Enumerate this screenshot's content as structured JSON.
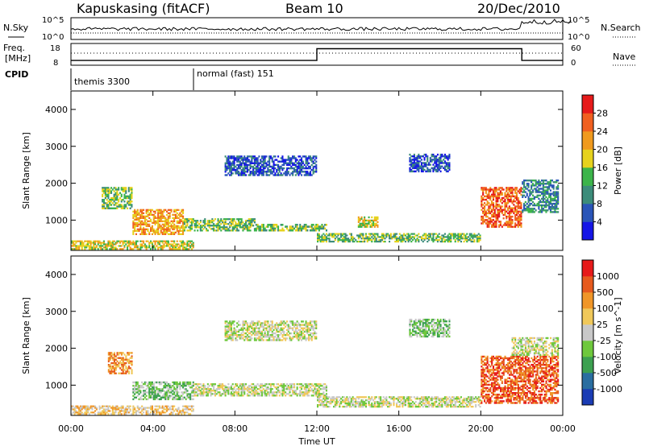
{
  "header": {
    "station": "Kapuskasing (fitACF)",
    "beam": "Beam 10",
    "date": "20/Dec/2010"
  },
  "aux": {
    "nsky_label": "N.Sky",
    "nsky_ticks": [
      "10^5",
      "10^0"
    ],
    "nsearch_label": "N.Search",
    "nsearch_ticks": [
      "10^5",
      "10^0"
    ],
    "freq_label_1": "Freq.",
    "freq_label_2": "[MHz]",
    "freq_ticks": [
      "18",
      "8"
    ],
    "nave_label": "Nave",
    "nave_ticks": [
      "60",
      "0"
    ],
    "cpid_label": "CPID",
    "cpid_segments": [
      {
        "t": 0,
        "label": "themis 3300"
      },
      {
        "t": 6,
        "label": "normal (fast) 151"
      }
    ],
    "freq_steps_mhz": [
      {
        "from": 0,
        "to": 12,
        "value": 10.2
      },
      {
        "from": 12,
        "to": 22,
        "value": 15.6
      },
      {
        "from": 22,
        "to": 24,
        "value": 10.2
      }
    ]
  },
  "chart_data": [
    {
      "type": "heatmap",
      "name": "power",
      "ylabel": "Slant Range [km]",
      "xlabel": "",
      "xlim": [
        0,
        24
      ],
      "ylim": [
        180,
        4500
      ],
      "yticks": [
        "1000",
        "2000",
        "3000",
        "4000"
      ],
      "ytick_values": [
        1000,
        2000,
        3000,
        4000
      ],
      "colorbar": {
        "label": "Power [dB]",
        "ticks": [
          "4",
          "8",
          "12",
          "16",
          "20",
          "24",
          "28"
        ],
        "colors": [
          "#1515e6",
          "#2a55b8",
          "#3c8c7a",
          "#3cb44a",
          "#e6d21e",
          "#f09a1e",
          "#f06020",
          "#e61a1a"
        ]
      },
      "patches": [
        {
          "t0": 1.5,
          "t1": 3.0,
          "r0": 1300,
          "r1": 1900,
          "level": 3
        },
        {
          "t0": 3.0,
          "t1": 5.5,
          "r0": 600,
          "r1": 1300,
          "level": 5
        },
        {
          "t0": 5.5,
          "t1": 9.0,
          "r0": 700,
          "r1": 1050,
          "level": 3
        },
        {
          "t0": 9.0,
          "t1": 12.5,
          "r0": 700,
          "r1": 900,
          "level": 3
        },
        {
          "t0": 7.5,
          "t1": 12.0,
          "r0": 2200,
          "r1": 2750,
          "level": 1
        },
        {
          "t0": 12.0,
          "t1": 20.0,
          "r0": 400,
          "r1": 650,
          "level": 3
        },
        {
          "t0": 14.0,
          "t1": 15.0,
          "r0": 800,
          "r1": 1100,
          "level": 4
        },
        {
          "t0": 16.5,
          "t1": 18.5,
          "r0": 2300,
          "r1": 2800,
          "level": 1
        },
        {
          "t0": 20.0,
          "t1": 22.0,
          "r0": 800,
          "r1": 1900,
          "level": 6
        },
        {
          "t0": 22.0,
          "t1": 23.8,
          "r0": 1200,
          "r1": 2100,
          "level": 2
        },
        {
          "t0": 0.0,
          "t1": 6.0,
          "r0": 200,
          "r1": 450,
          "level": 4
        }
      ]
    },
    {
      "type": "heatmap",
      "name": "velocity",
      "ylabel": "Slant Range [km]",
      "xlabel": "Time UT",
      "xlim": [
        0,
        24
      ],
      "ylim": [
        180,
        4500
      ],
      "xticks": [
        "00:00",
        "04:00",
        "08:00",
        "12:00",
        "16:00",
        "20:00",
        "00:00"
      ],
      "xtick_values": [
        0,
        4,
        8,
        12,
        16,
        20,
        24
      ],
      "yticks": [
        "1000",
        "2000",
        "3000",
        "4000"
      ],
      "ytick_values": [
        1000,
        2000,
        3000,
        4000
      ],
      "colorbar": {
        "label": "Velocity [m s^-1]",
        "ticks": [
          "1000",
          "500",
          "100",
          "25",
          "-25",
          "-100",
          "-500",
          "-1000"
        ],
        "colors": [
          "#1a3cb4",
          "#2a6ea0",
          "#3ca050",
          "#6ec83c",
          "#c8c8c8",
          "#f0c85a",
          "#f09628",
          "#e65a1e",
          "#e61a1a"
        ]
      },
      "patches": [
        {
          "t0": 1.8,
          "t1": 3.0,
          "r0": 1300,
          "r1": 1900,
          "level": 6
        },
        {
          "t0": 3.0,
          "t1": 6.0,
          "r0": 600,
          "r1": 1100,
          "level": 3
        },
        {
          "t0": 6.0,
          "t1": 12.5,
          "r0": 700,
          "r1": 1050,
          "level": 4
        },
        {
          "t0": 7.5,
          "t1": 12.0,
          "r0": 2200,
          "r1": 2750,
          "level": 4
        },
        {
          "t0": 12.0,
          "t1": 20.0,
          "r0": 400,
          "r1": 700,
          "level": 4
        },
        {
          "t0": 16.5,
          "t1": 18.5,
          "r0": 2300,
          "r1": 2800,
          "level": 3
        },
        {
          "t0": 20.0,
          "t1": 23.8,
          "r0": 500,
          "r1": 1800,
          "level": 7
        },
        {
          "t0": 21.5,
          "t1": 23.8,
          "r0": 1800,
          "r1": 2300,
          "level": 4
        },
        {
          "t0": 0.0,
          "t1": 6.0,
          "r0": 200,
          "r1": 450,
          "level": 5
        }
      ]
    }
  ]
}
